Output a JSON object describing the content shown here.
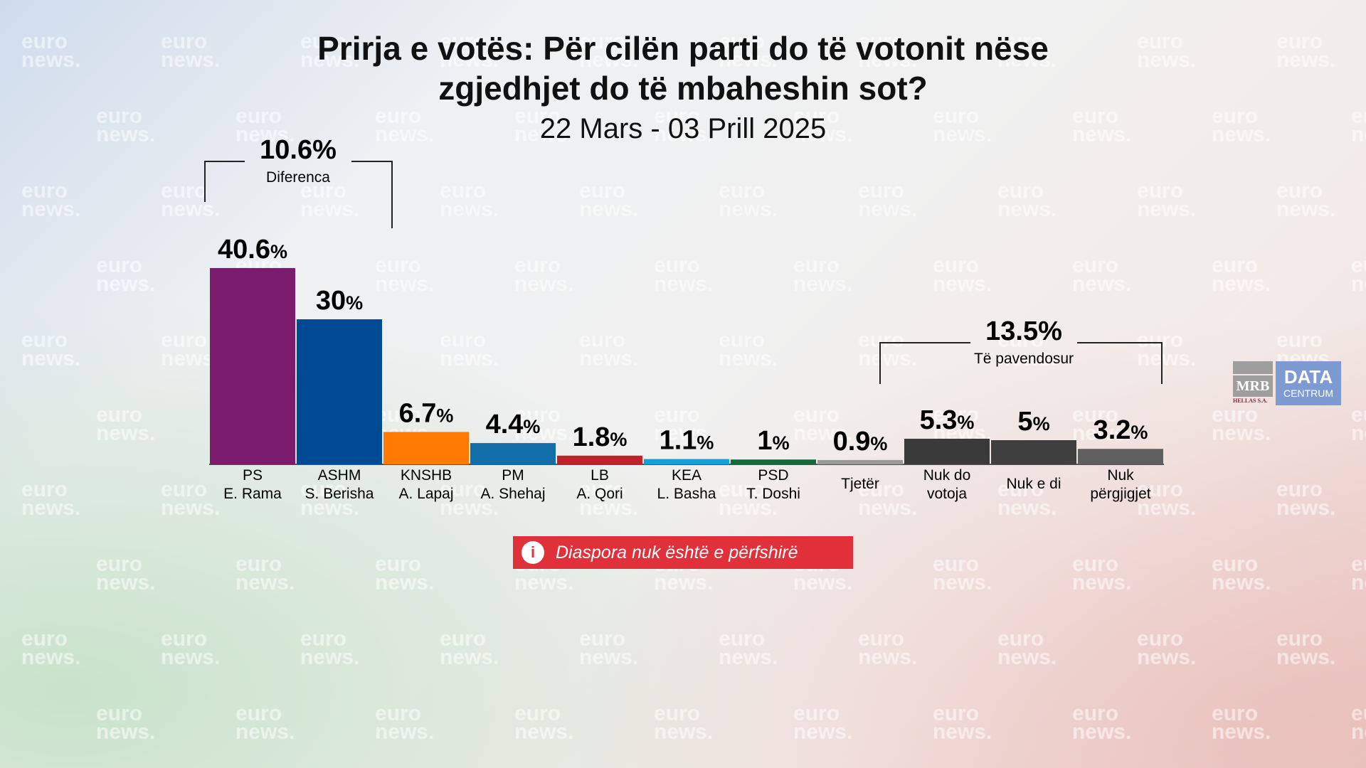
{
  "watermark": [
    "euro",
    "news."
  ],
  "logo": {
    "mrb": "MRB",
    "mrb_sub": "HELLAS S.A.",
    "data": "DATA",
    "centrum": "CENTRUM"
  },
  "notice": {
    "icon": "info-icon",
    "text": "Diaspora nuk është e përfshirë"
  },
  "chart_data": {
    "type": "bar",
    "title": [
      "Prirja e votës: Për cilën parti do të votonit nëse",
      "zgjedhjet do të mbaheshin sot?"
    ],
    "subtitle": "22 Mars - 03 Prill 2025",
    "categories": [
      [
        "PS",
        "E. Rama"
      ],
      [
        "ASHM",
        "S. Berisha"
      ],
      [
        "KNSHB",
        "A. Lapaj"
      ],
      [
        "PM",
        "A. Shehaj"
      ],
      [
        "LB",
        "A. Qori"
      ],
      [
        "KEA",
        "L. Basha"
      ],
      [
        "PSD",
        "T. Doshi"
      ],
      [
        "Tjetër"
      ],
      [
        "Nuk do",
        "votoja"
      ],
      [
        "Nuk e di"
      ],
      [
        "Nuk",
        "përgjigjet"
      ]
    ],
    "values": [
      40.6,
      30,
      6.7,
      4.4,
      1.8,
      1.1,
      1,
      0.9,
      5.3,
      5,
      3.2
    ],
    "value_labels": [
      "40.6",
      "30",
      "6.7",
      "4.4",
      "1.8",
      "1.1",
      "1",
      "0.9",
      "5.3",
      "5",
      "3.2"
    ],
    "unit": "%",
    "colors": [
      "#7b1c6e",
      "#004a93",
      "#ff7a00",
      "#126ea8",
      "#c0222a",
      "#14a2d6",
      "#16683a",
      "#9a9a9a",
      "#3a3a3a",
      "#3f3f3f",
      "#5f5f5f"
    ],
    "annotations": [
      {
        "value": "10.6%",
        "label": "Diferenca",
        "from": 0,
        "to": 1
      },
      {
        "value": "13.5%",
        "label": "Të pavendosur",
        "from": 8,
        "to": 10
      }
    ],
    "ylim": [
      0,
      42
    ],
    "grid": false
  }
}
